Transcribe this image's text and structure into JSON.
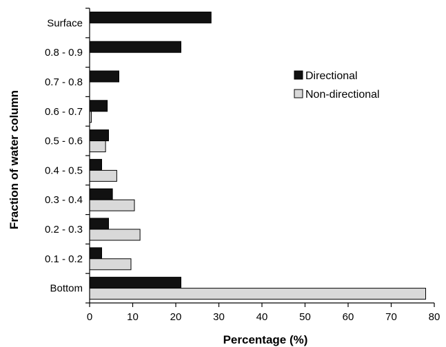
{
  "chart_data": {
    "type": "bar",
    "orientation": "horizontal",
    "title": "",
    "xlabel": "Percentage (%)",
    "ylabel": "Fraction of water column",
    "categories": [
      "Surface",
      "0.8 - 0.9",
      "0.7 - 0.8",
      "0.6 - 0.7",
      "0.5 - 0.6",
      "0.4 - 0.5",
      "0.3 - 0.4",
      "0.2 - 0.3",
      "0.1 - 0.2",
      "Bottom"
    ],
    "series": [
      {
        "name": "Directional",
        "color": "#111111",
        "values": [
          28.2,
          21.2,
          6.8,
          4.1,
          4.4,
          2.8,
          5.3,
          4.4,
          2.8,
          21.2
        ]
      },
      {
        "name": "Non-directional",
        "color": "#d9d9d9",
        "values": [
          0,
          0,
          0,
          0.4,
          3.7,
          6.3,
          10.4,
          11.7,
          9.6,
          78.0
        ]
      }
    ],
    "xlim": [
      0,
      80
    ],
    "xticks": [
      0,
      10,
      20,
      30,
      40,
      50,
      60,
      70,
      80
    ],
    "grid": false,
    "legend_position": "top-right"
  }
}
